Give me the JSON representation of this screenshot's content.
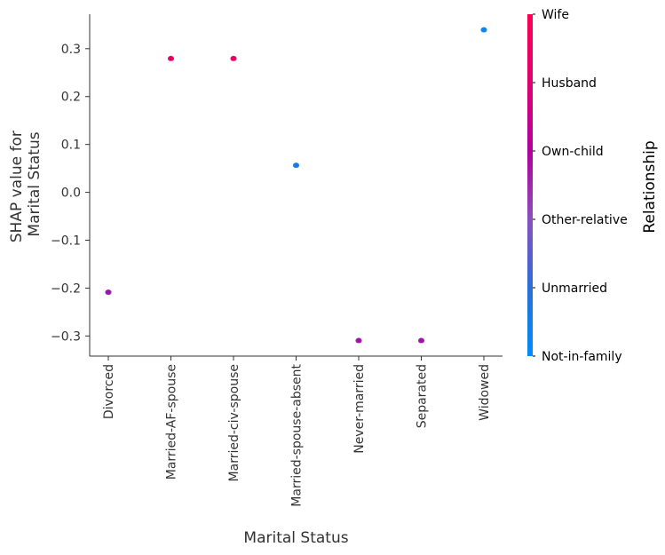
{
  "chart_data": {
    "type": "scatter",
    "title": "",
    "xlabel": "Marital Status",
    "ylabel_lines": [
      "SHAP value for",
      "Marital Status"
    ],
    "categories": [
      "Divorced",
      "Married-AF-spouse",
      "Married-civ-spouse",
      "Married-spouse-absent",
      "Never-married",
      "Separated",
      "Widowed"
    ],
    "points": [
      {
        "x": "Divorced",
        "y": -0.208,
        "color_value": "Own-child"
      },
      {
        "x": "Married-AF-spouse",
        "y": 0.28,
        "color_value": "Wife"
      },
      {
        "x": "Married-civ-spouse",
        "y": 0.28,
        "color_value": "Wife"
      },
      {
        "x": "Married-spouse-absent",
        "y": 0.057,
        "color_value": "Unmarried"
      },
      {
        "x": "Never-married",
        "y": -0.309,
        "color_value": "Own-child"
      },
      {
        "x": "Separated",
        "y": -0.309,
        "color_value": "Own-child"
      },
      {
        "x": "Widowed",
        "y": 0.34,
        "color_value": "Not-in-family"
      }
    ],
    "yticks": [
      -0.3,
      -0.2,
      -0.1,
      0.0,
      0.1,
      0.2,
      0.3
    ],
    "ytick_labels": [
      "−0.3",
      "−0.2",
      "−0.1",
      "0.0",
      "0.1",
      "0.2",
      "0.3"
    ],
    "ylim": [
      -0.342,
      0.372
    ],
    "grid": false,
    "colorbar": {
      "title": "Relationship",
      "labels_top_to_bottom": [
        "Wife",
        "Husband",
        "Own-child",
        "Other-relative",
        "Unmarried",
        "Not-in-family"
      ],
      "colors_top_to_bottom": [
        "#ff0052",
        "#e00070",
        "#b2009b",
        "#8a4fbf",
        "#2a6fd6",
        "#008bfa"
      ]
    },
    "point_colors": {
      "Wife": "#e5005e",
      "Husband": "#e00070",
      "Own-child": "#9f10a8",
      "Other-relative": "#8a4fbf",
      "Unmarried": "#1978e0",
      "Not-in-family": "#0a86ef"
    }
  }
}
